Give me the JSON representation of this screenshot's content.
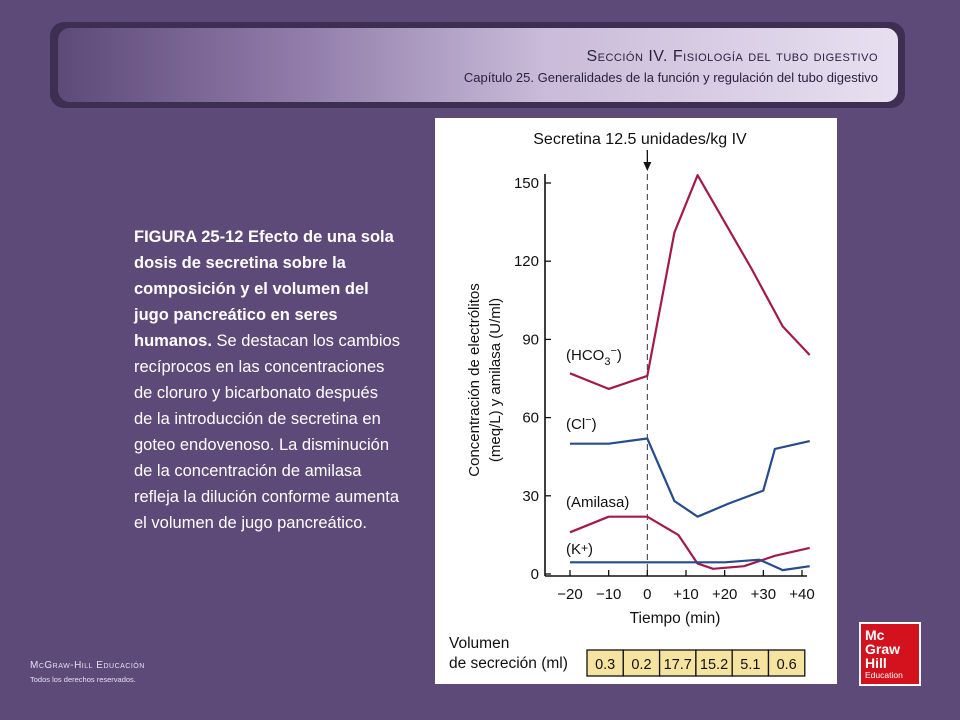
{
  "header": {
    "section": "Sección IV.  Fisiología del tubo digestivo",
    "chapter": "Capítulo 25.  Generalidades de la función y regulación del tubo digestivo"
  },
  "caption": {
    "bold": "FIGURA 25-12 Efecto de una sola dosis de secretina sobre la composición  y el volumen del jugo pancreático en seres humanos.",
    "body": " Se destacan los cambios recíprocos en las concentraciones de cloruro y bicarbonato después de la introducción de secretina en goteo endovenoso.  La disminución de la concentración de amilasa refleja la dilución conforme aumenta el volumen de jugo pancreático."
  },
  "footer": {
    "brand": "McGraw-Hill Educación",
    "rights": "Todos los derechos reservados."
  },
  "logo": {
    "line1": "Mc",
    "line2": "Graw",
    "line3": "Hill",
    "line4": "Education",
    "color": "#d4121e"
  },
  "chart_data": {
    "type": "line",
    "title": "Secretina 12.5 unidades/kg IV",
    "xlabel": "Tiempo (min)",
    "ylabel_line1": "Concentración de electrólitos",
    "ylabel_line2": "(meq/L) y amilasa (U/ml)",
    "xlim": [
      -24,
      44
    ],
    "ylim": [
      0,
      160
    ],
    "x_ticks": [
      -20,
      -10,
      0,
      10,
      20,
      30,
      40
    ],
    "x_tick_labels": [
      "−20",
      "−10",
      "0",
      "+10",
      "+20",
      "+30",
      "+40"
    ],
    "y_ticks": [
      0,
      30,
      60,
      90,
      120,
      150
    ],
    "y_tick_labels": [
      "0",
      "30",
      "60",
      "90",
      "120",
      "150"
    ],
    "marker_x": 0,
    "series": [
      {
        "name": "(HCO3−)",
        "color": "#a3194a",
        "points": [
          [
            -20,
            77
          ],
          [
            -10,
            71
          ],
          [
            0,
            76
          ],
          [
            7,
            131
          ],
          [
            13,
            153
          ],
          [
            27,
            117
          ],
          [
            35,
            95
          ],
          [
            42,
            84
          ]
        ]
      },
      {
        "name": "(Cl−)",
        "color": "#274c8c",
        "points": [
          [
            -20,
            50
          ],
          [
            -10,
            50
          ],
          [
            0,
            52
          ],
          [
            7,
            28
          ],
          [
            13,
            22
          ],
          [
            21,
            27
          ],
          [
            30,
            32
          ],
          [
            33,
            48
          ],
          [
            42,
            51
          ]
        ]
      },
      {
        "name": "(Amilasa)",
        "color": "#a3194a",
        "points": [
          [
            -20,
            16
          ],
          [
            -10,
            22
          ],
          [
            0,
            22
          ],
          [
            8,
            15
          ],
          [
            13,
            4
          ],
          [
            17,
            2
          ],
          [
            25,
            3
          ],
          [
            33,
            7
          ],
          [
            42,
            10
          ]
        ]
      },
      {
        "name": "(K+)",
        "color": "#274c8c",
        "points": [
          [
            -20,
            4.5
          ],
          [
            0,
            4.5
          ],
          [
            20,
            4.5
          ],
          [
            29,
            5.5
          ],
          [
            35,
            1.5
          ],
          [
            42,
            3
          ]
        ]
      }
    ],
    "volume_table": {
      "label_line1": "Volumen",
      "label_line2": "de secreción (ml)",
      "values": [
        "0.3",
        "0.2",
        "17.7",
        "15.2",
        "5.1",
        "0.6"
      ],
      "cell_color": "#f6e3a0"
    }
  }
}
